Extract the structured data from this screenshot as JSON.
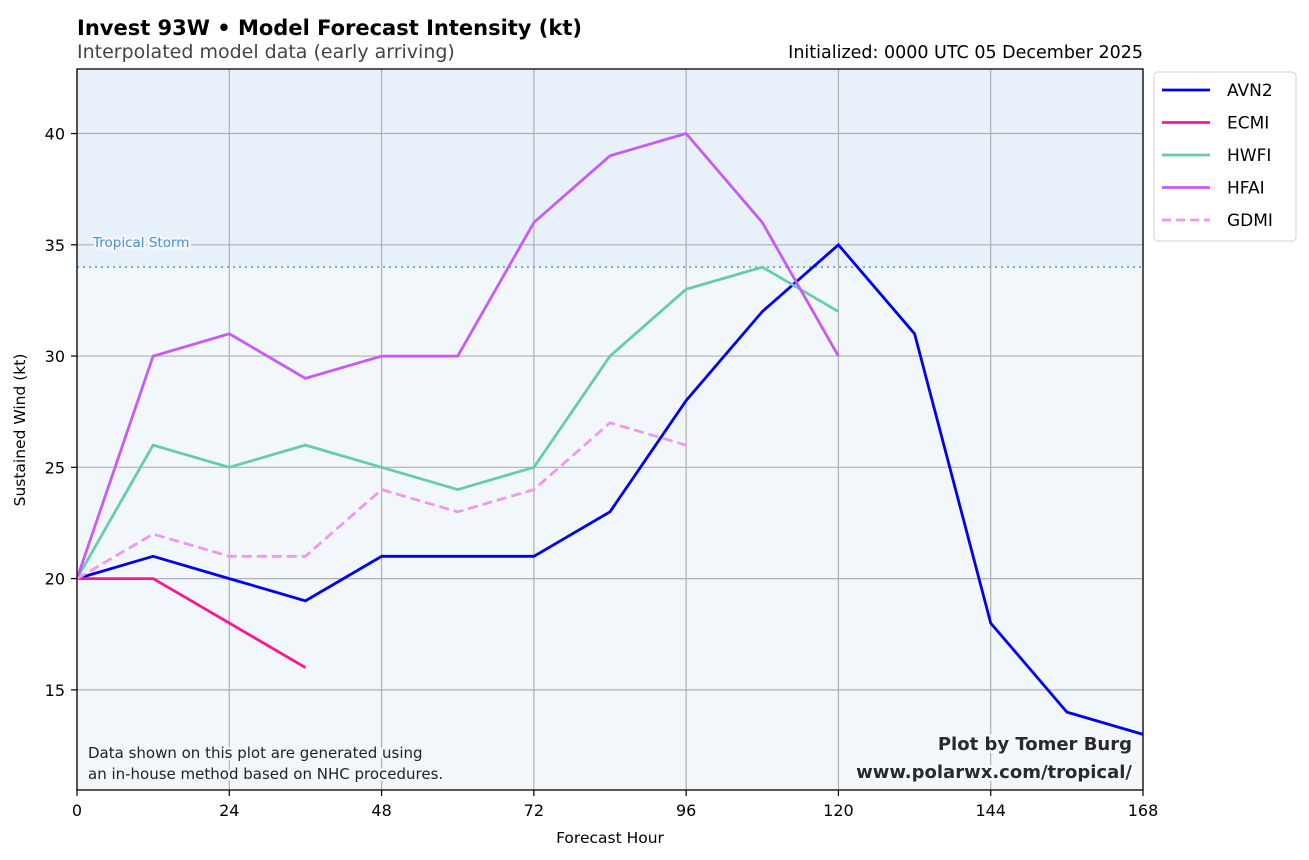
{
  "header": {
    "title": "Invest 93W • Model Forecast Intensity (kt)",
    "subtitle": "Interpolated model data (early arriving)",
    "initialized": "Initialized: 0000 UTC 05 December 2025"
  },
  "annotations": {
    "threshold_label": "Tropical Storm",
    "note_line1": "Data shown on this plot are generated using",
    "note_line2": "an in-house method based on NHC procedures.",
    "credit_line1": "Plot by Tomer Burg",
    "credit_line2": "www.polarwx.com/tropical/"
  },
  "chart_data": {
    "type": "line",
    "title": "Invest 93W • Model Forecast Intensity (kt)",
    "subtitle": "Interpolated model data (early arriving)",
    "xlabel": "Forecast Hour",
    "ylabel": "Sustained Wind (kt)",
    "xlim": [
      0,
      168
    ],
    "ylim": [
      10.5,
      42.9
    ],
    "xticks": [
      0,
      24,
      48,
      72,
      96,
      120,
      144,
      168
    ],
    "yticks": [
      15,
      20,
      25,
      30,
      35,
      40
    ],
    "grid": true,
    "legend_position": "outside-top-right",
    "threshold": {
      "label": "Tropical Storm",
      "value": 34,
      "color": "#6fb0e0",
      "style": "dotted"
    },
    "background": {
      "below_threshold": "#f2f7fc",
      "above_threshold": "#e8f0f9"
    },
    "series": [
      {
        "name": "AVN2",
        "color": "#0000ee",
        "dash": "solid",
        "x": [
          0,
          12,
          24,
          36,
          48,
          60,
          72,
          84,
          96,
          108,
          120,
          132,
          144,
          156,
          168
        ],
        "values": [
          20,
          21,
          20,
          19,
          21,
          21,
          21,
          23,
          28,
          32,
          35,
          31,
          18,
          14,
          13
        ]
      },
      {
        "name": "ECMI",
        "color": "#ff1493",
        "dash": "solid",
        "x": [
          0,
          12,
          24,
          36
        ],
        "values": [
          20,
          20,
          18,
          16
        ]
      },
      {
        "name": "HWFI",
        "color": "#66cdaa",
        "dash": "solid",
        "x": [
          0,
          12,
          24,
          36,
          48,
          60,
          72,
          84,
          96,
          108,
          120
        ],
        "values": [
          20,
          26,
          25,
          26,
          25,
          24,
          25,
          30,
          33,
          34,
          32
        ]
      },
      {
        "name": "HFAI",
        "color": "#c85af5",
        "dash": "solid",
        "x": [
          0,
          12,
          24,
          36,
          48,
          60,
          72,
          84,
          96,
          108,
          120
        ],
        "values": [
          20,
          30,
          31,
          29,
          30,
          30,
          36,
          39,
          40,
          36,
          30
        ]
      },
      {
        "name": "GDMI",
        "color": "#ee99ee",
        "dash": "dashed",
        "x": [
          0,
          12,
          24,
          36,
          48,
          60,
          72,
          84,
          96
        ],
        "values": [
          20,
          22,
          21,
          21,
          24,
          23,
          24,
          27,
          26
        ]
      }
    ]
  }
}
